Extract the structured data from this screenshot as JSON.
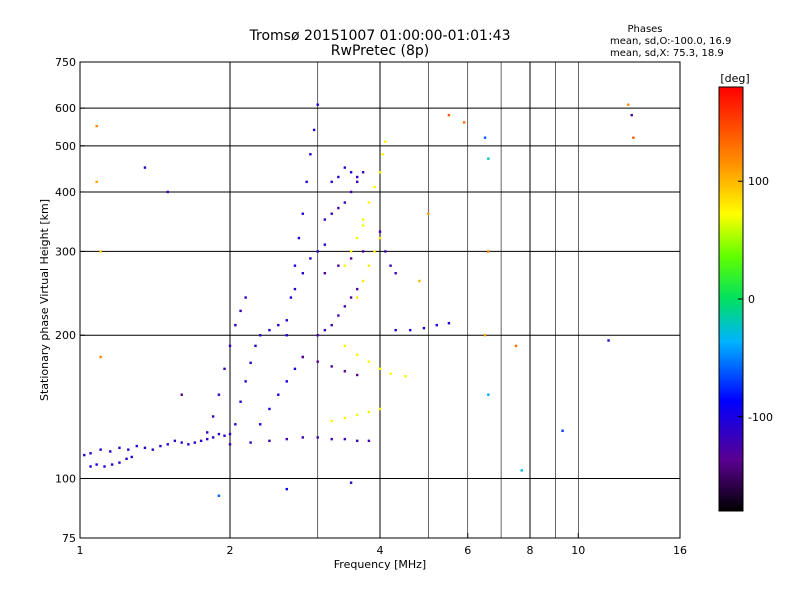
{
  "chart_data": {
    "type": "scatter",
    "title": "Tromsø 20151007 01:00:00-01:01:43",
    "subtitle": "RwPretec (8p)",
    "xlabel": "Frequency [MHz]",
    "ylabel": "Stationary phase Virtual Height [km]",
    "x_scale": "log2",
    "y_scale": "log",
    "xlim": [
      1,
      16
    ],
    "ylim": [
      75,
      750
    ],
    "xticks": [
      1,
      2,
      4,
      6,
      8,
      10,
      16
    ],
    "xtick_labels": [
      "1",
      "2",
      "4",
      "6",
      "8",
      "10",
      "16"
    ],
    "xgrid_major": [
      2,
      4,
      8
    ],
    "xgrid_minor": [
      3,
      5,
      6,
      7,
      9,
      10
    ],
    "yticks": [
      75,
      100,
      200,
      300,
      400,
      500,
      600,
      750
    ],
    "ytick_labels": [
      "75",
      "100",
      "200",
      "300",
      "400",
      "500",
      "600",
      "750"
    ],
    "ygrid": [
      100,
      200,
      300,
      400,
      500,
      600
    ],
    "grid": true,
    "phase_info": {
      "heading": "Phases",
      "line_o": "mean, sd,O:-100.0, 16.9",
      "line_x": "mean, sd,X:  75.3, 18.9"
    },
    "colorbar": {
      "label": "[deg]",
      "range": [
        -180,
        180
      ],
      "tick_values": [
        100,
        0,
        -100
      ],
      "tick_labels": [
        "100",
        "0",
        "-100"
      ]
    },
    "traces": [
      {
        "name_hidden": true,
        "phase": -110,
        "points": [
          [
            1.02,
            112
          ],
          [
            1.05,
            113
          ],
          [
            1.1,
            115
          ],
          [
            1.15,
            114
          ],
          [
            1.2,
            116
          ],
          [
            1.25,
            115
          ],
          [
            1.3,
            117
          ],
          [
            1.35,
            116
          ],
          [
            1.4,
            115
          ],
          [
            1.45,
            117
          ],
          [
            1.5,
            118
          ],
          [
            1.55,
            120
          ],
          [
            1.6,
            119
          ],
          [
            1.65,
            118
          ],
          [
            1.7,
            119
          ],
          [
            1.75,
            120
          ],
          [
            1.8,
            121
          ],
          [
            1.85,
            122
          ],
          [
            1.9,
            124
          ],
          [
            1.95,
            123
          ],
          [
            2.0,
            124
          ]
        ]
      },
      {
        "name_hidden": true,
        "phase": -105,
        "points": [
          [
            1.05,
            106
          ],
          [
            1.08,
            107
          ],
          [
            1.12,
            106
          ],
          [
            1.16,
            107
          ],
          [
            1.2,
            108
          ],
          [
            1.24,
            110
          ],
          [
            1.27,
            111
          ]
        ]
      },
      {
        "name_hidden": true,
        "phase": -120,
        "points": [
          [
            2.0,
            118
          ],
          [
            2.2,
            119
          ],
          [
            2.4,
            120
          ],
          [
            2.6,
            121
          ],
          [
            2.8,
            122
          ],
          [
            3.0,
            122
          ],
          [
            3.2,
            121
          ],
          [
            3.4,
            121
          ],
          [
            3.6,
            120
          ],
          [
            3.8,
            120
          ]
        ]
      },
      {
        "name_hidden": true,
        "phase": -115,
        "points": [
          [
            1.8,
            125
          ],
          [
            1.85,
            135
          ],
          [
            1.9,
            150
          ],
          [
            1.95,
            170
          ],
          [
            2.0,
            190
          ],
          [
            2.05,
            210
          ],
          [
            2.1,
            225
          ],
          [
            2.15,
            240
          ]
        ]
      },
      {
        "name_hidden": true,
        "phase": -110,
        "points": [
          [
            2.05,
            130
          ],
          [
            2.1,
            145
          ],
          [
            2.15,
            160
          ],
          [
            2.2,
            175
          ],
          [
            2.25,
            190
          ],
          [
            2.3,
            200
          ],
          [
            2.4,
            205
          ],
          [
            2.5,
            210
          ],
          [
            2.6,
            215
          ]
        ]
      },
      {
        "name_hidden": true,
        "phase": -100,
        "points": [
          [
            2.3,
            130
          ],
          [
            2.4,
            140
          ],
          [
            2.5,
            150
          ],
          [
            2.6,
            160
          ],
          [
            2.7,
            170
          ],
          [
            2.8,
            180
          ]
        ]
      },
      {
        "name_hidden": true,
        "phase": -105,
        "points": [
          [
            2.6,
            200
          ],
          [
            2.65,
            240
          ],
          [
            2.7,
            280
          ],
          [
            2.75,
            320
          ],
          [
            2.8,
            360
          ],
          [
            2.85,
            420
          ],
          [
            2.9,
            480
          ],
          [
            2.95,
            540
          ],
          [
            3.0,
            610
          ]
        ]
      },
      {
        "name_hidden": true,
        "phase": -110,
        "points": [
          [
            2.7,
            250
          ],
          [
            2.8,
            270
          ],
          [
            2.9,
            290
          ],
          [
            3.0,
            300
          ],
          [
            3.1,
            310
          ]
        ]
      },
      {
        "name_hidden": true,
        "phase": -125,
        "points": [
          [
            3.0,
            200
          ],
          [
            3.1,
            205
          ],
          [
            3.2,
            210
          ],
          [
            3.3,
            220
          ],
          [
            3.4,
            230
          ],
          [
            3.5,
            240
          ],
          [
            3.6,
            250
          ]
        ]
      },
      {
        "name_hidden": true,
        "phase": -120,
        "points": [
          [
            3.1,
            350
          ],
          [
            3.2,
            360
          ],
          [
            3.3,
            370
          ],
          [
            3.4,
            380
          ],
          [
            3.5,
            400
          ],
          [
            3.6,
            420
          ],
          [
            3.7,
            440
          ]
        ]
      },
      {
        "name_hidden": true,
        "phase": -130,
        "points": [
          [
            3.1,
            270
          ],
          [
            3.3,
            280
          ],
          [
            3.5,
            290
          ],
          [
            3.7,
            300
          ]
        ]
      },
      {
        "name_hidden": true,
        "phase": -135,
        "points": [
          [
            2.8,
            180
          ],
          [
            3.0,
            176
          ],
          [
            3.2,
            172
          ],
          [
            3.4,
            168
          ],
          [
            3.6,
            165
          ]
        ]
      },
      {
        "name_hidden": true,
        "phase": 75,
        "points": [
          [
            3.4,
            190
          ],
          [
            3.6,
            182
          ],
          [
            3.8,
            176
          ],
          [
            4.0,
            170
          ],
          [
            4.2,
            166
          ],
          [
            4.5,
            164
          ]
        ]
      },
      {
        "name_hidden": true,
        "phase": 75,
        "points": [
          [
            3.2,
            132
          ],
          [
            3.4,
            134
          ],
          [
            3.6,
            136
          ],
          [
            3.8,
            138
          ],
          [
            4.0,
            140
          ]
        ]
      },
      {
        "name_hidden": true,
        "phase": 80,
        "points": [
          [
            3.6,
            240
          ],
          [
            3.7,
            260
          ],
          [
            3.8,
            280
          ],
          [
            3.9,
            300
          ],
          [
            4.0,
            320
          ]
        ]
      },
      {
        "name_hidden": true,
        "phase": 75,
        "points": [
          [
            3.7,
            350
          ],
          [
            3.8,
            380
          ],
          [
            3.9,
            410
          ],
          [
            4.0,
            440
          ],
          [
            4.05,
            480
          ],
          [
            4.1,
            510
          ]
        ]
      },
      {
        "name_hidden": true,
        "phase": 70,
        "points": [
          [
            3.4,
            280
          ],
          [
            3.5,
            300
          ],
          [
            3.6,
            320
          ],
          [
            3.7,
            340
          ]
        ]
      },
      {
        "name_hidden": true,
        "phase": -100,
        "points": [
          [
            4.3,
            205
          ],
          [
            4.6,
            205
          ],
          [
            4.9,
            207
          ],
          [
            5.2,
            210
          ],
          [
            5.5,
            212
          ]
        ]
      },
      {
        "name_hidden": true,
        "phase": -120,
        "points": [
          [
            4.0,
            330
          ],
          [
            4.1,
            300
          ],
          [
            4.2,
            280
          ],
          [
            4.3,
            270
          ]
        ]
      },
      {
        "name_hidden": true,
        "phase": -110,
        "points": [
          [
            3.2,
            420
          ],
          [
            3.3,
            430
          ],
          [
            3.4,
            450
          ],
          [
            3.5,
            440
          ],
          [
            3.6,
            430
          ]
        ]
      }
    ],
    "outliers": [
      {
        "x": 1.08,
        "y": 550,
        "phase": 120
      },
      {
        "x": 1.08,
        "y": 420,
        "phase": 110
      },
      {
        "x": 1.1,
        "y": 300,
        "phase": 90
      },
      {
        "x": 1.1,
        "y": 180,
        "phase": 120
      },
      {
        "x": 1.35,
        "y": 450,
        "phase": -110
      },
      {
        "x": 1.5,
        "y": 400,
        "phase": -120
      },
      {
        "x": 1.6,
        "y": 150,
        "phase": -140
      },
      {
        "x": 1.9,
        "y": 92,
        "phase": -60
      },
      {
        "x": 2.6,
        "y": 95,
        "phase": -90
      },
      {
        "x": 3.5,
        "y": 98,
        "phase": -110
      },
      {
        "x": 5.5,
        "y": 580,
        "phase": 140
      },
      {
        "x": 5.9,
        "y": 560,
        "phase": 130
      },
      {
        "x": 6.5,
        "y": 520,
        "phase": -60
      },
      {
        "x": 6.6,
        "y": 470,
        "phase": -20
      },
      {
        "x": 6.6,
        "y": 300,
        "phase": 120
      },
      {
        "x": 6.5,
        "y": 200,
        "phase": 110
      },
      {
        "x": 7.5,
        "y": 190,
        "phase": 130
      },
      {
        "x": 6.6,
        "y": 150,
        "phase": -40
      },
      {
        "x": 7.7,
        "y": 104,
        "phase": -30
      },
      {
        "x": 9.3,
        "y": 126,
        "phase": -70
      },
      {
        "x": 11.5,
        "y": 195,
        "phase": -110
      },
      {
        "x": 12.6,
        "y": 610,
        "phase": 120
      },
      {
        "x": 12.8,
        "y": 580,
        "phase": -120
      },
      {
        "x": 12.9,
        "y": 520,
        "phase": 140
      },
      {
        "x": 5.0,
        "y": 360,
        "phase": 110
      },
      {
        "x": 4.8,
        "y": 260,
        "phase": 100
      }
    ]
  }
}
